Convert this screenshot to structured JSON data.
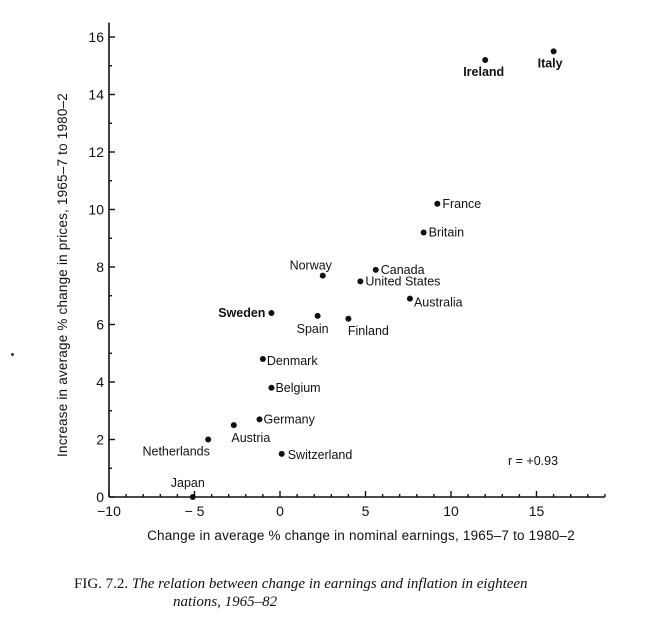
{
  "chart_data": {
    "type": "scatter",
    "title": "",
    "xlabel": "Change in average % change in nominal earnings, 1965–7 to 1980–2",
    "ylabel": "Increase in average % change in prices, 1965–7 to 1980–2",
    "xlim": [
      -10,
      19
    ],
    "ylim": [
      0,
      16.5
    ],
    "x_ticks": [
      -10,
      -5,
      0,
      5,
      10,
      15
    ],
    "x_tick_labels": [
      "−10",
      "− 5",
      "0",
      "5",
      "10",
      "15"
    ],
    "y_ticks": [
      0,
      2,
      4,
      6,
      8,
      10,
      12,
      14,
      16
    ],
    "y_tick_labels": [
      "0",
      "2",
      "4",
      "6",
      "8",
      "10",
      "12",
      "14",
      "16"
    ],
    "grid": false,
    "annotation": "r = +0.93",
    "points": [
      {
        "label": "Italy",
        "x": 16.0,
        "y": 15.5,
        "bold": true
      },
      {
        "label": "Ireland",
        "x": 12.0,
        "y": 15.2,
        "bold": true
      },
      {
        "label": "France",
        "x": 9.2,
        "y": 10.2,
        "bold": false
      },
      {
        "label": "Britain",
        "x": 8.4,
        "y": 9.2,
        "bold": false
      },
      {
        "label": "Canada",
        "x": 5.6,
        "y": 7.9,
        "bold": false
      },
      {
        "label": "Norway",
        "x": 2.5,
        "y": 7.7,
        "bold": false
      },
      {
        "label": "United States",
        "x": 4.7,
        "y": 7.5,
        "bold": false
      },
      {
        "label": "Australia",
        "x": 7.6,
        "y": 6.9,
        "bold": false
      },
      {
        "label": "Sweden",
        "x": -0.5,
        "y": 6.4,
        "bold": true
      },
      {
        "label": "Spain",
        "x": 2.2,
        "y": 6.3,
        "bold": false
      },
      {
        "label": "Finland",
        "x": 4.0,
        "y": 6.2,
        "bold": false
      },
      {
        "label": "Denmark",
        "x": -1.0,
        "y": 4.8,
        "bold": false
      },
      {
        "label": "Belgium",
        "x": -0.5,
        "y": 3.8,
        "bold": false
      },
      {
        "label": "Germany",
        "x": -1.2,
        "y": 2.7,
        "bold": false
      },
      {
        "label": "Austria",
        "x": -2.7,
        "y": 2.5,
        "bold": false
      },
      {
        "label": "Netherlands",
        "x": -4.2,
        "y": 2.0,
        "bold": false
      },
      {
        "label": "Switzerland",
        "x": 0.1,
        "y": 1.5,
        "bold": false
      },
      {
        "label": "Japan",
        "x": -5.1,
        "y": 0.0,
        "bold": false
      }
    ]
  },
  "caption": {
    "fig": "FIG. 7.2.",
    "line1": "The relation between change in earnings and inflation in eighteen",
    "line2": "nations, 1965–82"
  }
}
